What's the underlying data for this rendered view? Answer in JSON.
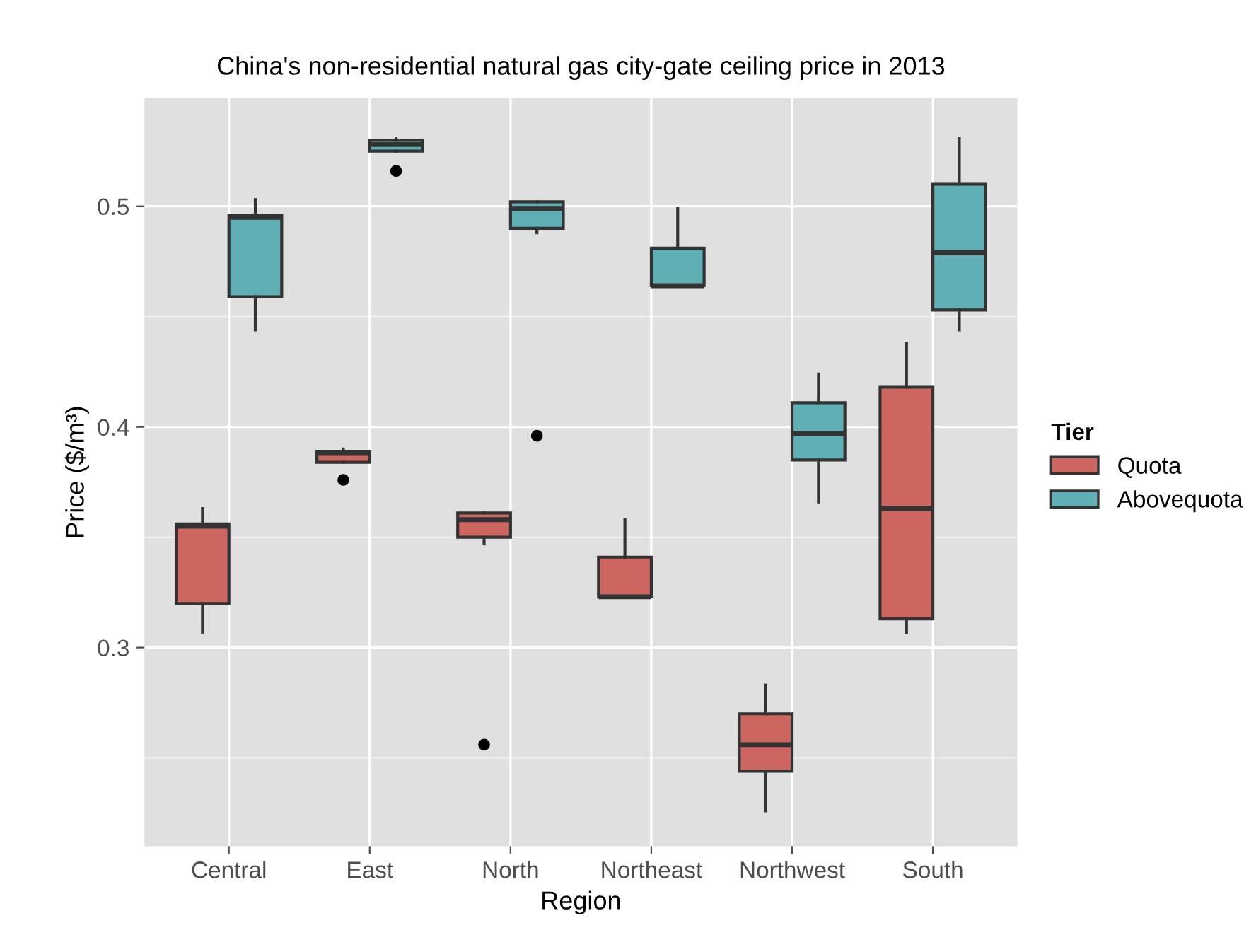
{
  "chart_data": {
    "type": "box",
    "title": "China's non-residential natural gas city-gate ceiling price in 2013",
    "xlabel": "Region",
    "ylabel": "Price ($/m³)",
    "legend_title": "Tier",
    "categories": [
      "Central",
      "East",
      "North",
      "Northeast",
      "Northwest",
      "South"
    ],
    "series": [
      {
        "name": "Quota",
        "color": "#cd6660",
        "boxes": [
          {
            "low": 0.307,
            "q1": 0.32,
            "median": 0.355,
            "q3": 0.356,
            "high": 0.363
          },
          {
            "low": 0.384,
            "q1": 0.384,
            "median": 0.388,
            "q3": 0.389,
            "high": 0.39,
            "outliers": [
              0.376
            ]
          },
          {
            "low": 0.347,
            "q1": 0.35,
            "median": 0.358,
            "q3": 0.361,
            "high": 0.361,
            "outliers": [
              0.256
            ]
          },
          {
            "low": 0.323,
            "q1": 0.323,
            "median": 0.323,
            "q3": 0.341,
            "high": 0.358
          },
          {
            "low": 0.226,
            "q1": 0.244,
            "median": 0.256,
            "q3": 0.27,
            "high": 0.283
          },
          {
            "low": 0.307,
            "q1": 0.313,
            "median": 0.363,
            "q3": 0.418,
            "high": 0.438
          }
        ]
      },
      {
        "name": "Abovequota",
        "color": "#5fafb4",
        "boxes": [
          {
            "low": 0.444,
            "q1": 0.459,
            "median": 0.495,
            "q3": 0.496,
            "high": 0.503
          },
          {
            "low": 0.525,
            "q1": 0.525,
            "median": 0.528,
            "q3": 0.53,
            "high": 0.531,
            "outliers": [
              0.516
            ]
          },
          {
            "low": 0.488,
            "q1": 0.49,
            "median": 0.499,
            "q3": 0.502,
            "high": 0.502,
            "outliers": [
              0.396
            ]
          },
          {
            "low": 0.464,
            "q1": 0.464,
            "median": 0.464,
            "q3": 0.481,
            "high": 0.499
          },
          {
            "low": 0.366,
            "q1": 0.385,
            "median": 0.397,
            "q3": 0.411,
            "high": 0.424
          },
          {
            "low": 0.444,
            "q1": 0.453,
            "median": 0.479,
            "q3": 0.51,
            "high": 0.531
          }
        ]
      }
    ],
    "ylim": [
      0.21,
      0.549
    ],
    "yticks": [
      0.3,
      0.4,
      0.5
    ],
    "grid": true,
    "legend": "right"
  }
}
